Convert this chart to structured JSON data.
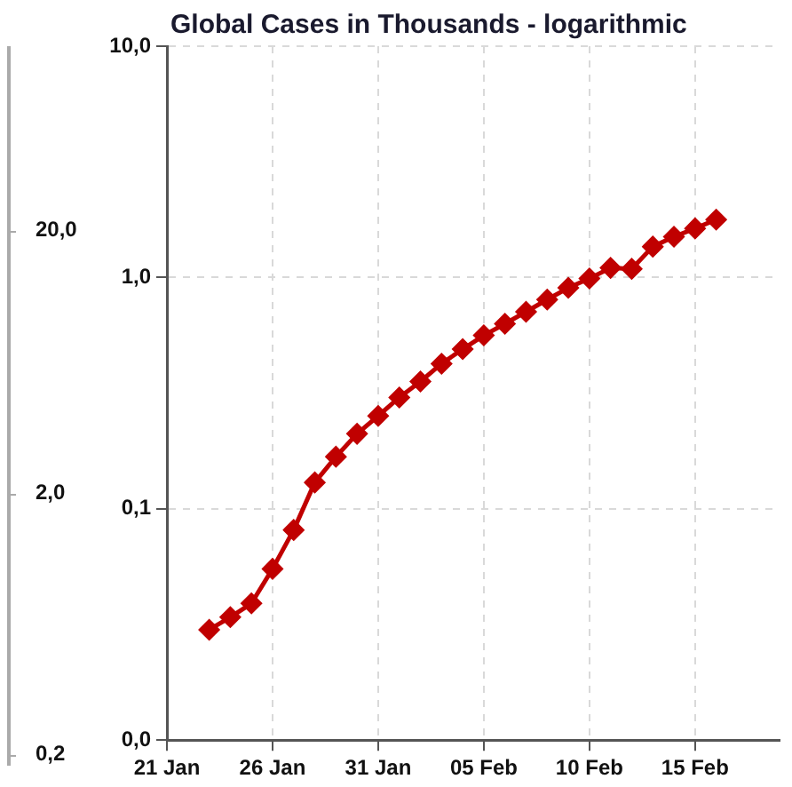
{
  "chart_data": [
    {
      "type": "other",
      "annotations": [
        "20,0",
        "2,0",
        "0,2"
      ]
    },
    {
      "type": "line",
      "title": "Global Cases in Thousands - logarithmic",
      "x": [
        "--01-23",
        "--01-24",
        "--01-25",
        "--01-26",
        "--01-27",
        "--01-28",
        "--01-29",
        "--01-30",
        "--01-31",
        "--02-01",
        "--02-02",
        "--02-03",
        "--02-04",
        "--02-05",
        "--02-06",
        "--02-07",
        "--02-08",
        "--02-09",
        "--02-10",
        "--02-11",
        "--02-12",
        "--02-13",
        "--02-14",
        "--02-15",
        "--02-16"
      ],
      "series": [
        {
          "color": "#c00000",
          "values": [
            0.03,
            0.034,
            0.039,
            0.055,
            0.081,
            0.13,
            0.168,
            0.211,
            0.252,
            0.303,
            0.355,
            0.424,
            0.49,
            0.562,
            0.631,
            0.711,
            0.803,
            0.902,
            0.99,
            1.1,
            1.09,
            1.36,
            1.5,
            1.63,
            1.78
          ]
        }
      ],
      "xlim": [
        "--01-21",
        "--02-19"
      ],
      "xticks": [
        {
          "value": "--01-21",
          "label": "21 Jan"
        },
        {
          "value": "--01-26",
          "label": "26 Jan"
        },
        {
          "value": "--01-31",
          "label": "31 Jan"
        },
        {
          "value": "--02-05",
          "label": "05 Feb"
        },
        {
          "value": "--02-10",
          "label": "10 Feb"
        },
        {
          "value": "--02-15",
          "label": "15 Feb"
        }
      ],
      "ylim": [
        0.01,
        10
      ],
      "yticks": [
        {
          "value": 0.01,
          "label": "0,0"
        },
        {
          "value": 0.1,
          "label": "0,1"
        },
        {
          "value": 1,
          "label": "1,0"
        },
        {
          "value": 10,
          "label": "10,0"
        }
      ],
      "log": "y",
      "grid": true,
      "marker": "diamond",
      "line_style": "solid"
    }
  ]
}
